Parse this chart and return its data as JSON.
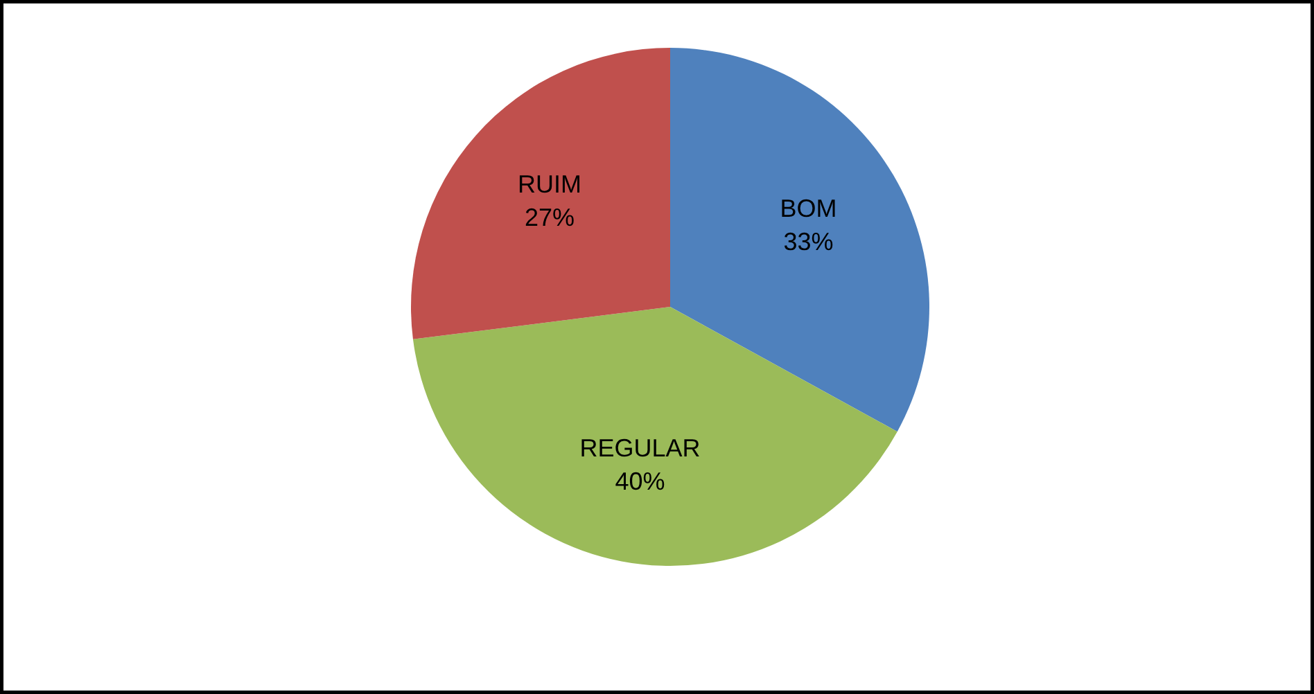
{
  "chart_data": {
    "type": "pie",
    "categories": [
      "BOM",
      "REGULAR",
      "RUIM"
    ],
    "values": [
      33,
      40,
      27
    ],
    "colors": [
      "#4f81bd",
      "#9bbb59",
      "#c0504d"
    ],
    "value_labels": [
      "33%",
      "40%",
      "27%"
    ]
  }
}
